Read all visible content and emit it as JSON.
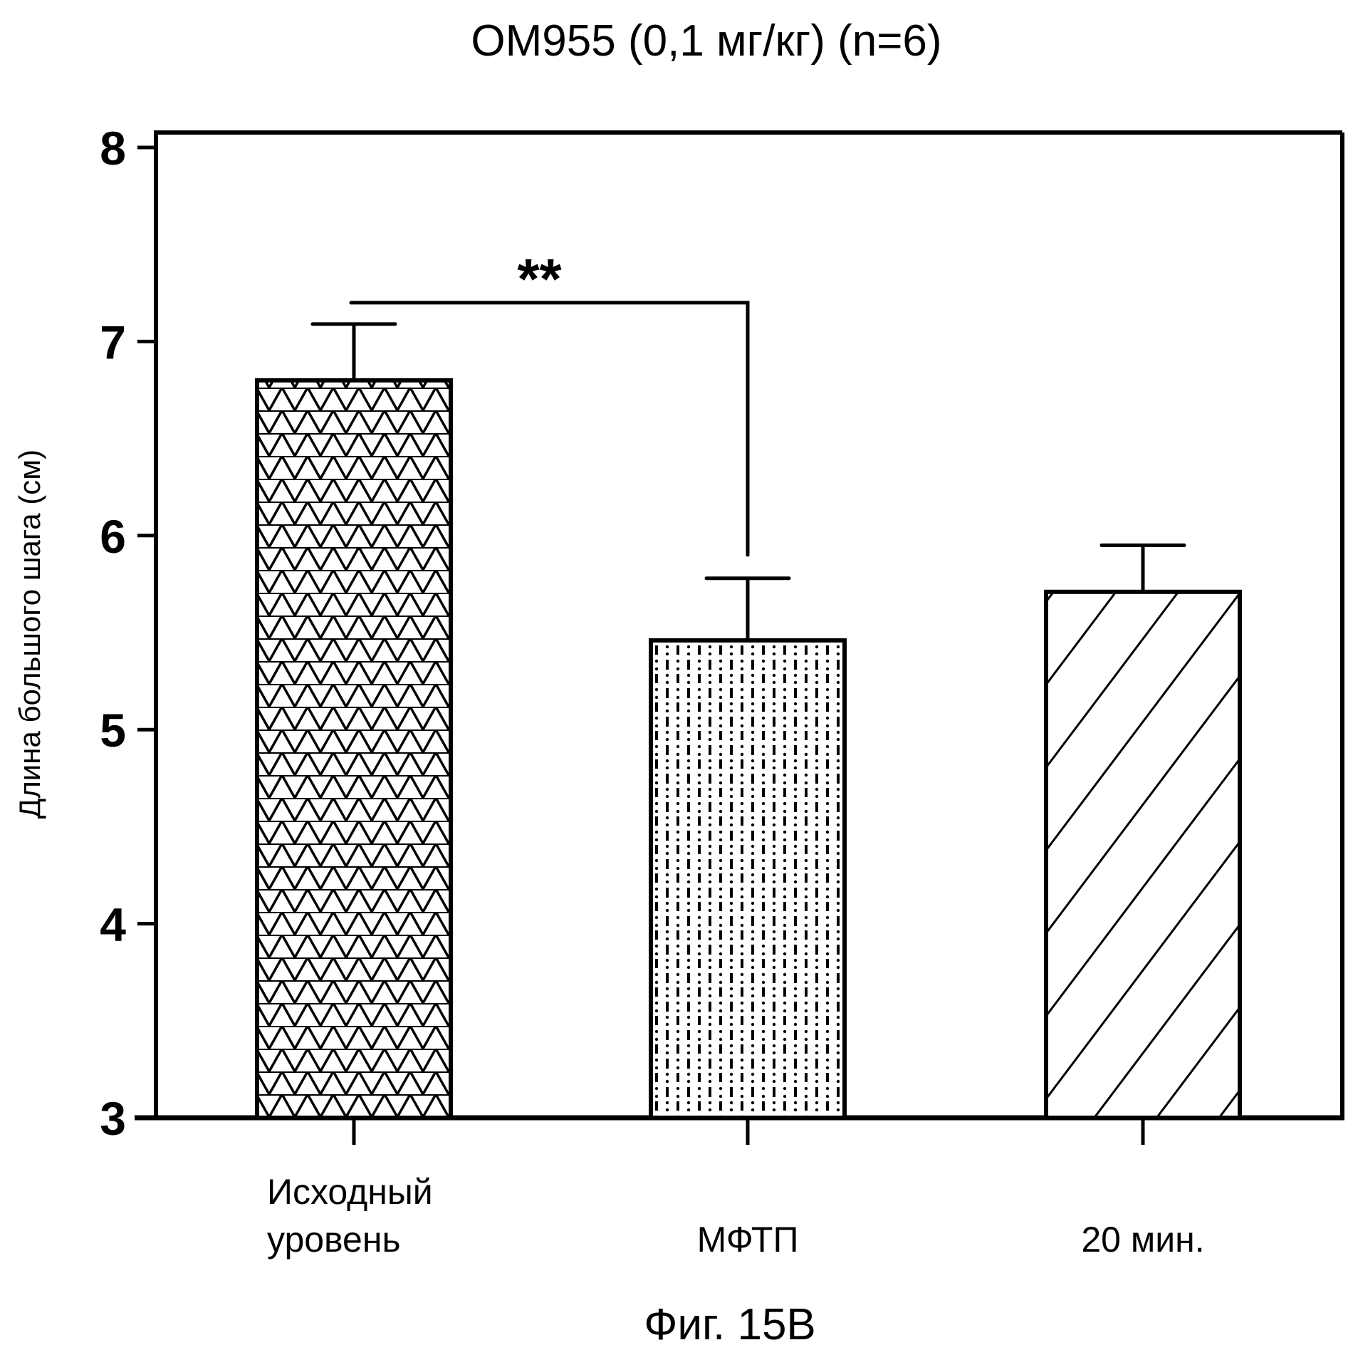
{
  "chart_data": {
    "type": "bar",
    "title": "OM955 (0,1 мг/кг) (n=6)",
    "ylabel": "Длина большого шага (см)",
    "xlabel": "",
    "ylim": [
      3,
      8
    ],
    "yticks": [
      "3",
      "4",
      "5",
      "6",
      "7",
      "8"
    ],
    "categories": [
      [
        "Исходный",
        "уровень"
      ],
      [
        "МФТП"
      ],
      [
        "20 мин."
      ]
    ],
    "values": [
      6.8,
      5.46,
      5.71
    ],
    "error_upper": [
      7.09,
      5.78,
      5.95
    ],
    "patterns": [
      "triangle-mesh",
      "dot-dash",
      "diagonal-hatch"
    ],
    "significance": [
      {
        "from": 0,
        "to": 1,
        "label": "**",
        "y_level": 7.2,
        "right_drop_to": 5.9
      }
    ],
    "grid": false,
    "legend": "none",
    "caption": "Фиг. 15B"
  }
}
